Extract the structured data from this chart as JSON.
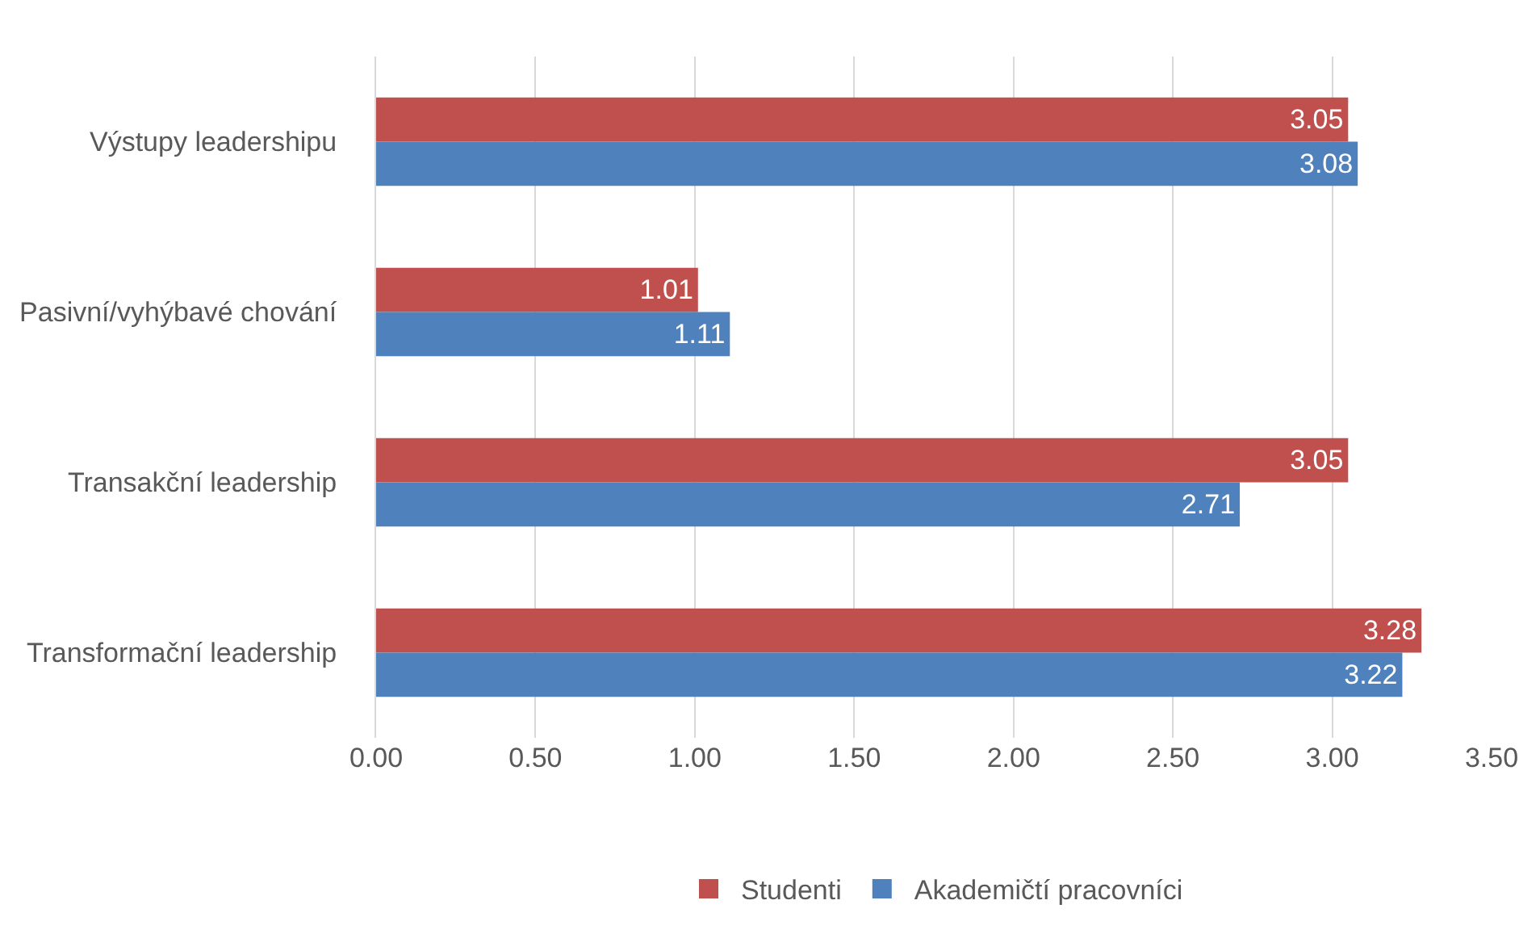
{
  "chart_data": {
    "type": "bar",
    "orientation": "horizontal",
    "categories": [
      "Výstupy leadershipu",
      "Pasivní/vyhýbavé chování",
      "Transakční leadership",
      "Transformační leadership"
    ],
    "series": [
      {
        "name": "Studenti",
        "color": "#c0504d",
        "values": [
          3.05,
          1.01,
          3.05,
          3.28
        ]
      },
      {
        "name": "Akademičtí pracovníci",
        "color": "#4f81bd",
        "values": [
          3.08,
          1.11,
          2.71,
          3.22
        ]
      }
    ],
    "xlim": [
      0,
      3.5
    ],
    "xticks": [
      {
        "value": 0,
        "label": "0.00"
      },
      {
        "value": 0.5,
        "label": "0.50"
      },
      {
        "value": 1,
        "label": "1.00"
      },
      {
        "value": 1.5,
        "label": "1.50"
      },
      {
        "value": 2,
        "label": "2.00"
      },
      {
        "value": 2.5,
        "label": "2.50"
      },
      {
        "value": 3,
        "label": "3.00"
      },
      {
        "value": 3.5,
        "label": "3.50"
      }
    ],
    "grid": "x",
    "legend": "bottom",
    "data_labels": true
  }
}
